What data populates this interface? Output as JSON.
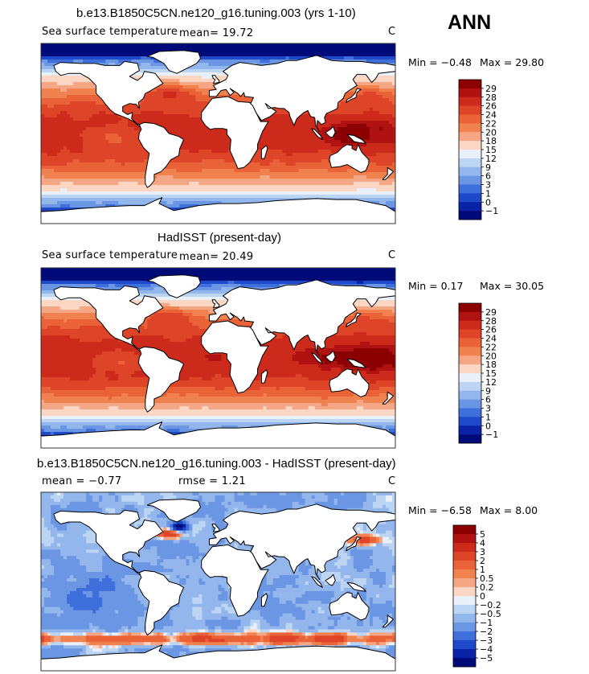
{
  "season": "ANN",
  "chart_data": [
    {
      "type": "heatmap",
      "title": "b.e13.B1850C5CN.ne120_g16.tuning.003 (yrs 1-10)",
      "subtitle": "Sea surface temperature",
      "mean_text": "mean=   19.72",
      "units": "C",
      "min_text": "Min =   −0.48",
      "max_text": "Max =   29.80",
      "colorbar_levels": [
        "29",
        "28",
        "26",
        "24",
        "22",
        "20",
        "18",
        "15",
        "12",
        "9",
        "6",
        "3",
        "1",
        "0",
        "−1"
      ],
      "colorbar_colors": [
        "#8b0000",
        "#b01212",
        "#cc2a1a",
        "#dd4428",
        "#ea6238",
        "#f08250",
        "#f5a685",
        "#fbd6c2",
        "#e9f0fa",
        "#bcd5f2",
        "#93b7ec",
        "#6a96e4",
        "#3f6fdb",
        "#1e49c9",
        "#0a22a5",
        "#000a78"
      ]
    },
    {
      "type": "heatmap",
      "title": "HadISST (present-day)",
      "subtitle": "Sea surface temperature",
      "mean_text": "mean=   20.49",
      "units": "C",
      "min_text": "Min =    0.17",
      "max_text": "Max =   30.05",
      "colorbar_levels": [
        "29",
        "28",
        "26",
        "24",
        "22",
        "20",
        "18",
        "15",
        "12",
        "9",
        "6",
        "3",
        "1",
        "0",
        "−1"
      ],
      "colorbar_colors": [
        "#8b0000",
        "#b01212",
        "#cc2a1a",
        "#dd4428",
        "#ea6238",
        "#f08250",
        "#f5a685",
        "#fbd6c2",
        "#e9f0fa",
        "#bcd5f2",
        "#93b7ec",
        "#6a96e4",
        "#3f6fdb",
        "#1e49c9",
        "#0a22a5",
        "#000a78"
      ]
    },
    {
      "type": "heatmap",
      "title": "b.e13.B1850C5CN.ne120_g16.tuning.003 - HadISST (present-day)",
      "mean_text": "mean =   −0.77",
      "rmse_text": "rmse =    1.21",
      "units": "C",
      "min_text": "Min =   −6.58",
      "max_text": "Max =    8.00",
      "colorbar_levels": [
        "5",
        "4",
        "3",
        "2",
        "1",
        "0.5",
        "0.2",
        "0",
        "−0.2",
        "−0.5",
        "−1",
        "−2",
        "−3",
        "−4",
        "−5"
      ],
      "colorbar_colors": [
        "#8b0000",
        "#b01212",
        "#cc2a1a",
        "#dd4428",
        "#ea6238",
        "#f08250",
        "#f5a685",
        "#fbd6c2",
        "#e9f0fa",
        "#bcd5f2",
        "#93b7ec",
        "#6a96e4",
        "#3f6fdb",
        "#1e49c9",
        "#0a22a5",
        "#000a78"
      ]
    }
  ]
}
